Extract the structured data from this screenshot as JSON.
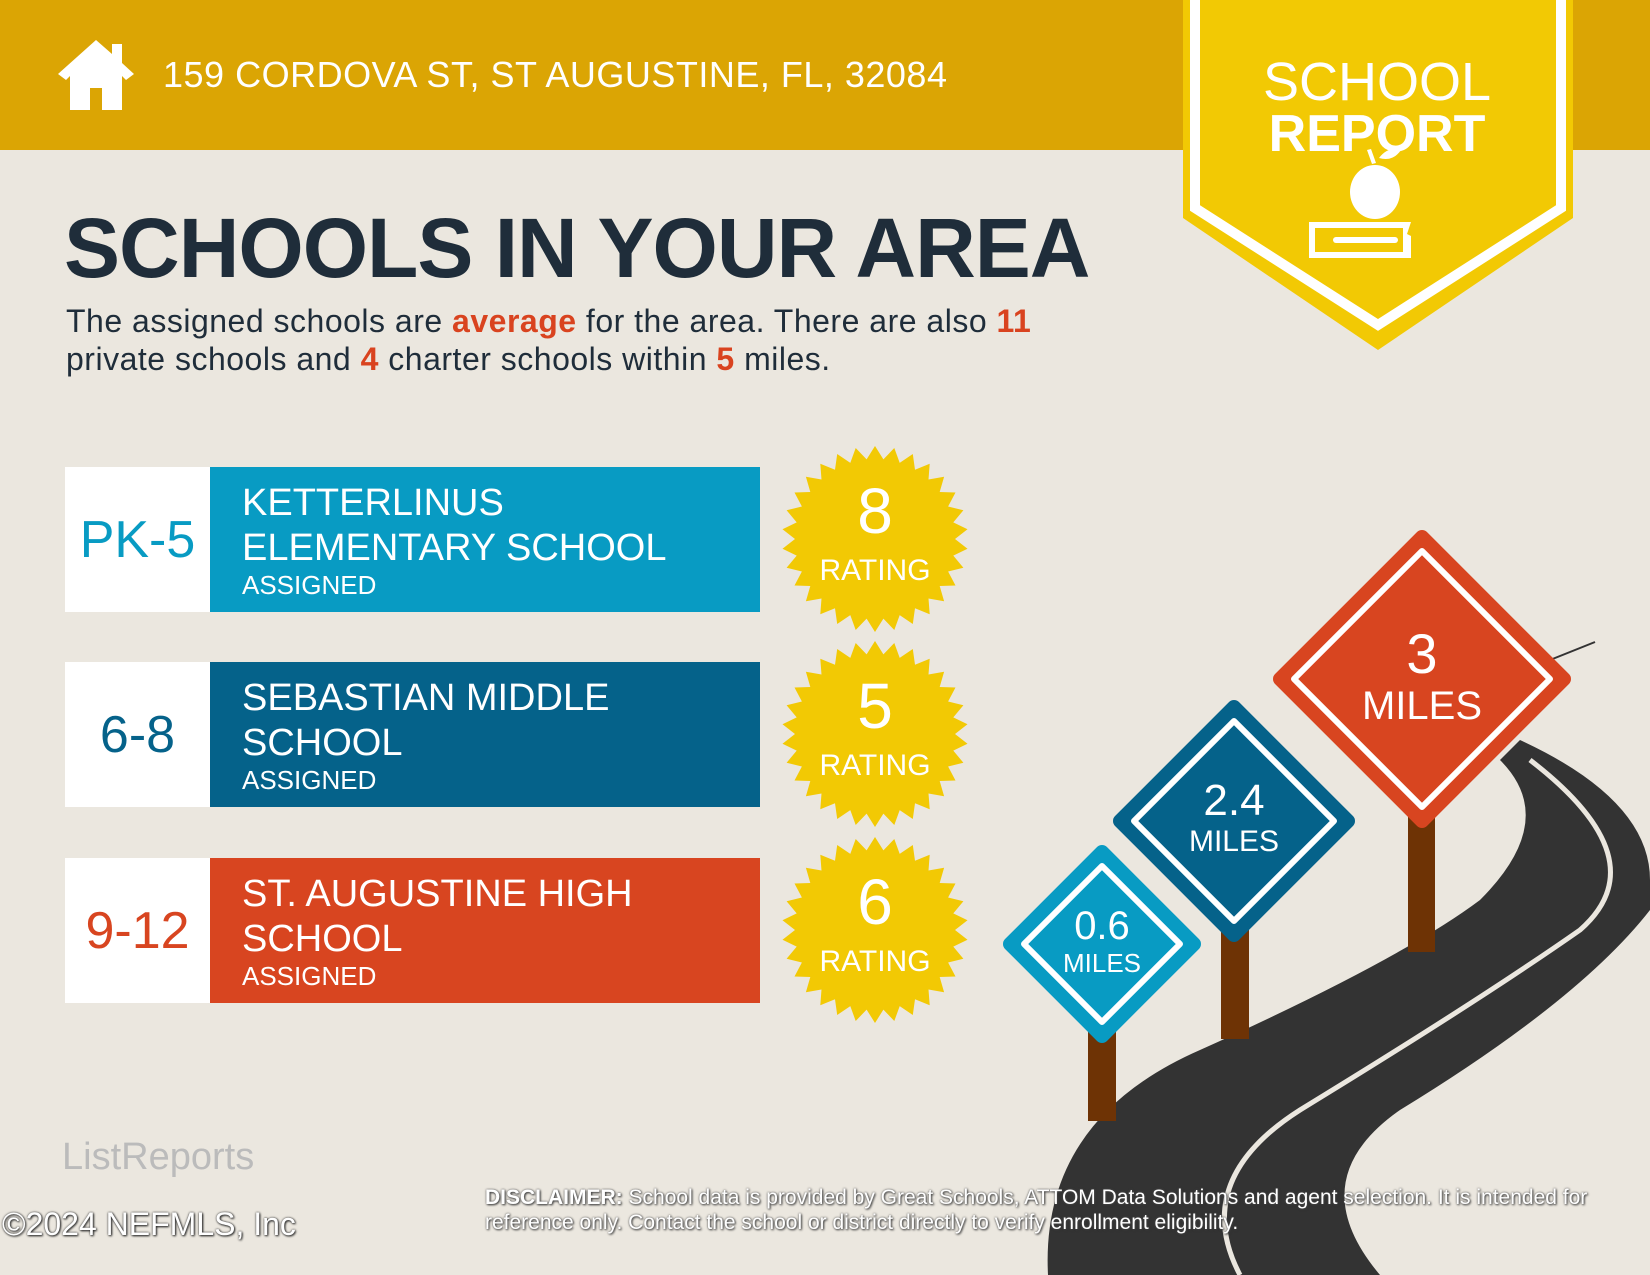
{
  "header": {
    "address": "159 CORDOVA ST, ST AUGUSTINE, FL, 32084",
    "badge_line1": "SCHOOL",
    "badge_line2": "REPORT"
  },
  "main": {
    "title": "SCHOOLS IN YOUR AREA",
    "summary": {
      "p1": "The assigned schools are ",
      "quality": "average",
      "p2": " for the area. There are also ",
      "private_count": "11",
      "p3": " private schools and ",
      "charter_count": "4",
      "p4": " charter schools within ",
      "radius": "5",
      "p5": " miles."
    },
    "schools": [
      {
        "grades": "PK-5",
        "name_line1": "KETTERLINUS",
        "name_line2": "ELEMENTARY SCHOOL",
        "status": "ASSIGNED",
        "rating": "8",
        "rating_label": "RATING",
        "color": "#089bc3"
      },
      {
        "grades": "6-8",
        "name_line1": "SEBASTIAN MIDDLE",
        "name_line2": "SCHOOL",
        "status": "ASSIGNED",
        "rating": "5",
        "rating_label": "RATING",
        "color": "#05628a"
      },
      {
        "grades": "9-12",
        "name_line1": "ST. AUGUSTINE HIGH",
        "name_line2": "SCHOOL",
        "status": "ASSIGNED",
        "rating": "6",
        "rating_label": "RATING",
        "color": "#d84520"
      }
    ],
    "signs": [
      {
        "distance": "0.6",
        "unit": "MILES",
        "color": "#089bc3"
      },
      {
        "distance": "2.4",
        "unit": "MILES",
        "color": "#05628a"
      },
      {
        "distance": "3",
        "unit": "MILES",
        "color": "#d84520"
      }
    ]
  },
  "footer": {
    "disclaimer_label": "DISCLAIMER:",
    "disclaimer": " School data is provided by Great Schools, ATTOM Data Solutions and agent selection. It is intended for reference only. Contact the school or district directly to verify enrollment eligibility.",
    "logo": "ListReports",
    "copyright": "©2024 NEFMLS, Inc"
  },
  "colors": {
    "header": "#dba504",
    "badge": "#f2c904",
    "star": "#f2c904",
    "accent": "#d9431f",
    "dark": "#1f2d3a"
  }
}
